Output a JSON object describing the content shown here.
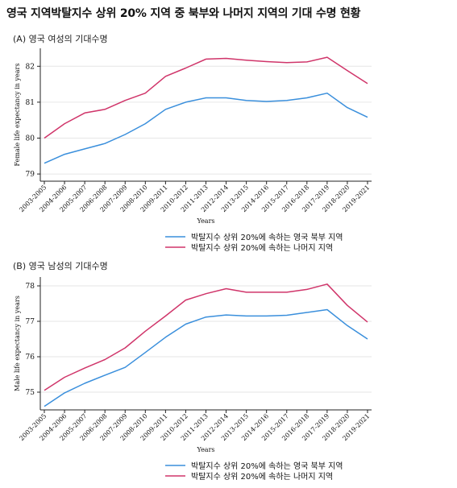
{
  "title": "영국 지역박탈지수 상위 20% 지역 중 북부와 나머지 지역의 기대 수명 현황",
  "colors": {
    "north": "#3a8fdc",
    "rest": "#d0356a"
  },
  "chart_data": [
    {
      "type": "line",
      "panel_label": "(A) 영국 여성의 기대수명",
      "xlabel": "Years",
      "ylabel": "Female life expectancy in years",
      "ylim": [
        78.8,
        82.5
      ],
      "yticks": [
        79,
        80,
        81,
        82
      ],
      "grid": true,
      "legend_position": "bottom-center",
      "categories": [
        "2003-2005",
        "2004-2006",
        "2005-2007",
        "2006-2008",
        "2007-2009",
        "2008-2010",
        "2009-2011",
        "2010-2012",
        "2011-2013",
        "2012-2014",
        "2013-2015",
        "2014-2016",
        "2015-2017",
        "2016-2018",
        "2017-2019",
        "2018-2020",
        "2019-2021"
      ],
      "series": [
        {
          "name": "박탈지수 상위 20%에 속하는 영국 북부 지역",
          "color_key": "north",
          "values": [
            79.3,
            79.55,
            79.7,
            79.85,
            80.1,
            80.4,
            80.8,
            81.0,
            81.12,
            81.12,
            81.05,
            81.02,
            81.05,
            81.12,
            81.25,
            80.85,
            80.58
          ]
        },
        {
          "name": "박탈지수 상위 20%에 속하는 나머지 지역",
          "color_key": "rest",
          "values": [
            80.0,
            80.4,
            80.7,
            80.8,
            81.05,
            81.25,
            81.72,
            81.95,
            82.2,
            82.22,
            82.17,
            82.13,
            82.1,
            82.12,
            82.25,
            81.88,
            81.52
          ]
        }
      ]
    },
    {
      "type": "line",
      "panel_label": "(B) 영국 남성의 기대수명",
      "xlabel": "Years",
      "ylabel": "Male life expectancy in years",
      "ylim": [
        74.5,
        78.25
      ],
      "yticks": [
        75,
        76,
        77,
        78
      ],
      "grid": true,
      "legend_position": "bottom-center",
      "categories": [
        "2003-2005",
        "2004-2006",
        "2005-2007",
        "2006-2008",
        "2007-2009",
        "2008-2010",
        "2009-2011",
        "2010-2012",
        "2011-2013",
        "2012-2014",
        "2013-2015",
        "2014-2016",
        "2015-2017",
        "2016-2018",
        "2017-2019",
        "2018-2020",
        "2019-2021"
      ],
      "series": [
        {
          "name": "박탈지수 상위 20%에 속하는 영국 북부 지역",
          "color_key": "north",
          "values": [
            74.6,
            74.98,
            75.25,
            75.48,
            75.7,
            76.12,
            76.55,
            76.92,
            77.12,
            77.18,
            77.15,
            77.15,
            77.17,
            77.25,
            77.33,
            76.88,
            76.5
          ]
        },
        {
          "name": "박탈지수 상위 20%에 속하는 나머지 지역",
          "color_key": "rest",
          "values": [
            75.05,
            75.42,
            75.68,
            75.92,
            76.25,
            76.72,
            77.15,
            77.6,
            77.78,
            77.92,
            77.82,
            77.82,
            77.82,
            77.9,
            78.05,
            77.45,
            76.98
          ]
        }
      ]
    }
  ]
}
